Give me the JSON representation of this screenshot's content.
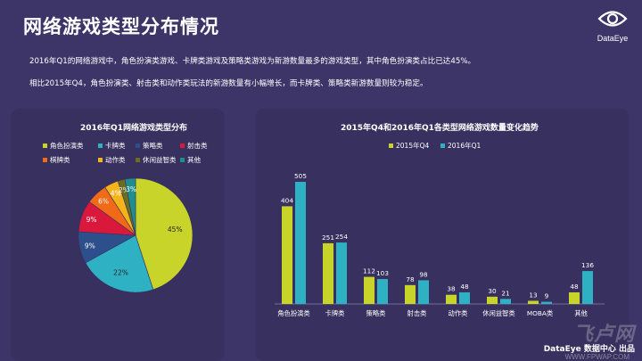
{
  "header": {
    "title": "网络游戏类型分布情况",
    "logo_text": "DataEye"
  },
  "paragraphs": [
    "2016年Q1的网络游戏中，角色扮演类游戏、卡牌类游戏及策略类游戏为新游数量最多的游戏类型，其中角色扮演类占比已达45%。",
    "相比2015年Q4，角色扮演类、射击类和动作类玩法的新游数量有小幅增长，而卡牌类、策略类新游数量则较为稳定。"
  ],
  "footer": {
    "credit": "DataEye 数据中心 出品"
  },
  "colors": {
    "yellow": "#c8d42a",
    "cyan": "#2fb1c4",
    "navy": "#2d4f8c",
    "red": "#d9183c",
    "orange": "#f06a17",
    "gold": "#f5b31b",
    "olive": "#6b6e1e",
    "teal": "#1f8e8e"
  },
  "chart_data": [
    {
      "type": "pie",
      "title": "2016年Q1网络游戏类型分布",
      "legend_position": "top",
      "slices": [
        {
          "name": "角色扮演类",
          "value": 45,
          "label": "45%",
          "color": "#c8d42a"
        },
        {
          "name": "卡牌类",
          "value": 22,
          "label": "22%",
          "color": "#2fb1c4"
        },
        {
          "name": "策略类",
          "value": 9,
          "label": "9%",
          "color": "#2d4f8c"
        },
        {
          "name": "射击类",
          "value": 9,
          "label": "9%",
          "color": "#d9183c"
        },
        {
          "name": "棋牌类",
          "value": 6,
          "label": "6%",
          "color": "#f06a17"
        },
        {
          "name": "动作类",
          "value": 4,
          "label": "4%",
          "color": "#f5b31b"
        },
        {
          "name": "休闲益智类",
          "value": 2,
          "label": "2%",
          "color": "#6b6e1e"
        },
        {
          "name": "其他",
          "value": 3,
          "label": "3%",
          "color": "#1f8e8e"
        }
      ]
    },
    {
      "type": "bar",
      "title": "2015年Q4和2016年Q1各类型网络游戏数量变化趋势",
      "legend_position": "top-left",
      "categories": [
        "角色扮演类",
        "卡牌类",
        "策略类",
        "射击类",
        "动作类",
        "休闲益智类",
        "MOBA类",
        "其他"
      ],
      "series": [
        {
          "name": "2015年Q4",
          "color": "#c8d42a",
          "values": [
            404,
            251,
            112,
            78,
            38,
            30,
            13,
            48
          ]
        },
        {
          "name": "2016年Q1",
          "color": "#2fb1c4",
          "values": [
            505,
            254,
            103,
            98,
            48,
            21,
            9,
            136
          ]
        }
      ],
      "ylim": [
        0,
        505
      ]
    }
  ]
}
